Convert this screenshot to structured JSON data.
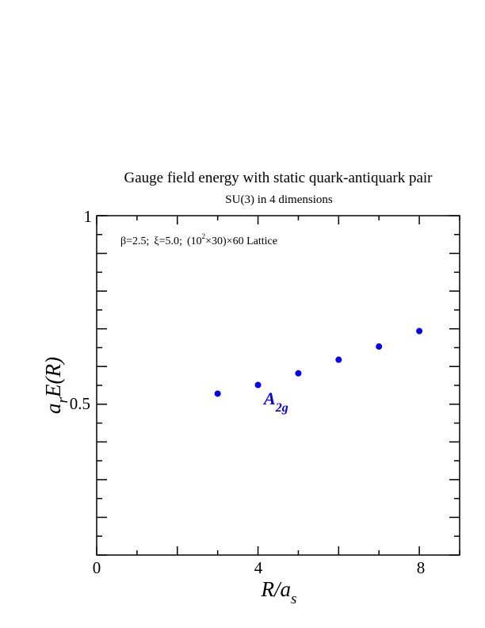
{
  "chart_data": {
    "type": "scatter",
    "title": "Gauge field energy with static quark-antiquark pair",
    "subtitle": "SU(3) in 4 dimensions",
    "annotation": {
      "beta": "β=2.5;",
      "xi": "ξ=5.0;",
      "lattice_a": "(10",
      "lattice_exp": "2",
      "lattice_b": "×30)×60 Lattice"
    },
    "xlabel": {
      "main": "R/a",
      "sub": "s"
    },
    "ylabel": {
      "a": "a",
      "r": "r",
      "rest": "E(R)"
    },
    "xlim": [
      0,
      9
    ],
    "ylim": [
      0.1,
      1.0
    ],
    "x_ticks": [
      0,
      4,
      8
    ],
    "x_tick_labels": [
      "0",
      "4",
      "8"
    ],
    "y_ticks": [
      0.5,
      1.0
    ],
    "y_tick_labels": [
      "0.5",
      "1"
    ],
    "grid": false,
    "series": [
      {
        "name": "A2g",
        "label_main": "A",
        "label_sub": "2g",
        "color": "#0000ff",
        "x": [
          3,
          4,
          5,
          6,
          7,
          8
        ],
        "y": [
          0.528,
          0.551,
          0.582,
          0.618,
          0.653,
          0.694
        ]
      }
    ]
  }
}
